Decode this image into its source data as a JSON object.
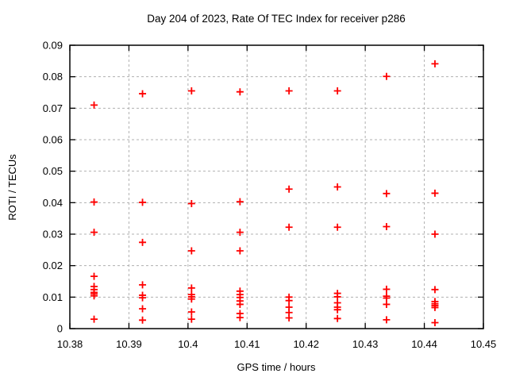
{
  "window": {
    "background_color": "#ffffff"
  },
  "chart_data": {
    "type": "scatter",
    "title": "Day 204 of 2023, Rate Of TEC Index for receiver p286",
    "xlabel": "GPS time / hours",
    "ylabel": "ROTI / TECUs",
    "xlim": [
      10.38,
      10.45
    ],
    "ylim": [
      0,
      0.09
    ],
    "grid": true,
    "legend": "none",
    "marker": "plus",
    "marker_color": "#ff0000",
    "grid_color": "#b0b0b0",
    "axis_color": "#000000",
    "xtick_values": [
      10.38,
      10.39,
      10.4,
      10.41,
      10.42,
      10.43,
      10.44,
      10.45
    ],
    "xtick_labels": [
      "10.38",
      "10.39",
      "10.4",
      "10.41",
      "10.42",
      "10.43",
      "10.44",
      "10.45"
    ],
    "ytick_values": [
      0,
      0.01,
      0.02,
      0.03,
      0.04,
      0.05,
      0.06,
      0.07,
      0.08,
      0.09
    ],
    "ytick_labels": [
      "0",
      "0.01",
      "0.02",
      "0.03",
      "0.04",
      "0.05",
      "0.06",
      "0.07",
      "0.08",
      "0.09"
    ],
    "series": [
      {
        "name": "ROTI",
        "points": [
          [
            10.3841,
            0.071
          ],
          [
            10.3841,
            0.0402
          ],
          [
            10.3841,
            0.0306
          ],
          [
            10.3841,
            0.0166
          ],
          [
            10.3841,
            0.0134
          ],
          [
            10.3841,
            0.0124
          ],
          [
            10.3841,
            0.0115
          ],
          [
            10.3841,
            0.011
          ],
          [
            10.3841,
            0.0104
          ],
          [
            10.3841,
            0.003
          ],
          [
            10.3923,
            0.0746
          ],
          [
            10.3923,
            0.0401
          ],
          [
            10.3923,
            0.0274
          ],
          [
            10.3923,
            0.0139
          ],
          [
            10.3923,
            0.0106
          ],
          [
            10.3923,
            0.0098
          ],
          [
            10.3923,
            0.0063
          ],
          [
            10.3923,
            0.0027
          ],
          [
            10.4006,
            0.0755
          ],
          [
            10.4006,
            0.0397
          ],
          [
            10.4006,
            0.0247
          ],
          [
            10.4006,
            0.0129
          ],
          [
            10.4006,
            0.0108
          ],
          [
            10.4006,
            0.0101
          ],
          [
            10.4006,
            0.0094
          ],
          [
            10.4006,
            0.0053
          ],
          [
            10.4006,
            0.003
          ],
          [
            10.4088,
            0.0752
          ],
          [
            10.4088,
            0.0403
          ],
          [
            10.4088,
            0.0306
          ],
          [
            10.4088,
            0.0247
          ],
          [
            10.4088,
            0.0119
          ],
          [
            10.4088,
            0.0108
          ],
          [
            10.4088,
            0.0099
          ],
          [
            10.4088,
            0.0088
          ],
          [
            10.4088,
            0.0077
          ],
          [
            10.4088,
            0.0048
          ],
          [
            10.4088,
            0.0035
          ],
          [
            10.4171,
            0.0755
          ],
          [
            10.4171,
            0.0443
          ],
          [
            10.4171,
            0.0322
          ],
          [
            10.4171,
            0.01
          ],
          [
            10.4171,
            0.0089
          ],
          [
            10.4171,
            0.0068
          ],
          [
            10.4171,
            0.0051
          ],
          [
            10.4171,
            0.0034
          ],
          [
            10.4253,
            0.0755
          ],
          [
            10.4253,
            0.045
          ],
          [
            10.4253,
            0.0322
          ],
          [
            10.4253,
            0.0112
          ],
          [
            10.4253,
            0.0101
          ],
          [
            10.4253,
            0.0082
          ],
          [
            10.4253,
            0.0068
          ],
          [
            10.4253,
            0.006
          ],
          [
            10.4253,
            0.0032
          ],
          [
            10.4336,
            0.0801
          ],
          [
            10.4336,
            0.0429
          ],
          [
            10.4336,
            0.0324
          ],
          [
            10.4336,
            0.0125
          ],
          [
            10.4336,
            0.0103
          ],
          [
            10.4336,
            0.0097
          ],
          [
            10.4336,
            0.0077
          ],
          [
            10.4336,
            0.0028
          ],
          [
            10.4418,
            0.0841
          ],
          [
            10.4418,
            0.043
          ],
          [
            10.4418,
            0.03
          ],
          [
            10.4418,
            0.0124
          ],
          [
            10.4418,
            0.0086
          ],
          [
            10.4418,
            0.0079
          ],
          [
            10.4418,
            0.0073
          ],
          [
            10.4418,
            0.0067
          ],
          [
            10.4418,
            0.0019
          ]
        ]
      }
    ]
  }
}
